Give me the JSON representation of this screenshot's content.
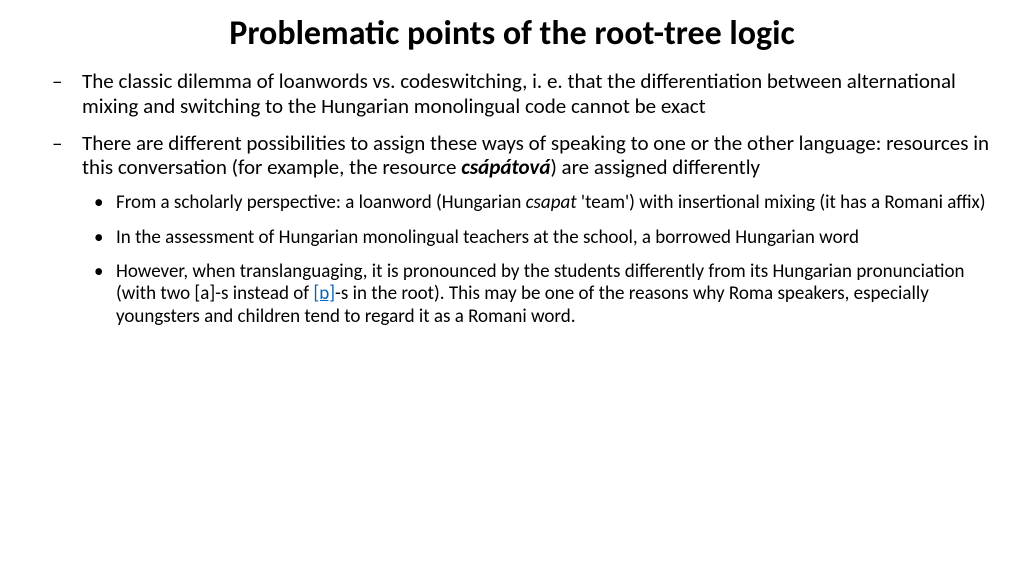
{
  "title": "Problematic points of the root-tree logic",
  "bullets": {
    "b1": "The classic dilemma of loanwords vs. codeswitching, i. e. that the differentiation between alternational mixing and switching to the Hungarian monolingual code cannot be exact",
    "b2a": "There are different possibilities to assign these ways of speaking to one or the other language: resources in this conversation (for example, the resource ",
    "b2_res": "csápátová",
    "b2b": ") are assigned differently",
    "s1a": "From a scholarly perspective: a loanword (Hungarian ",
    "s1_hu": "csapat",
    "s1b": " 'team') with insertional mixing (it has a Romani affix)",
    "s2": "In the assessment of Hungarian monolingual teachers at the school, a borrowed Hungarian word",
    "s3a": "However, when translanguaging, it is pronounced by the students differently from its Hungarian pronunciation (with two [a]-s instead of ",
    "s3_link": "[ɒ]",
    "s3b": "-s in the root). This may be one of the reasons why Roma speakers, especially youngsters and children tend to regard it as a Romani word."
  }
}
